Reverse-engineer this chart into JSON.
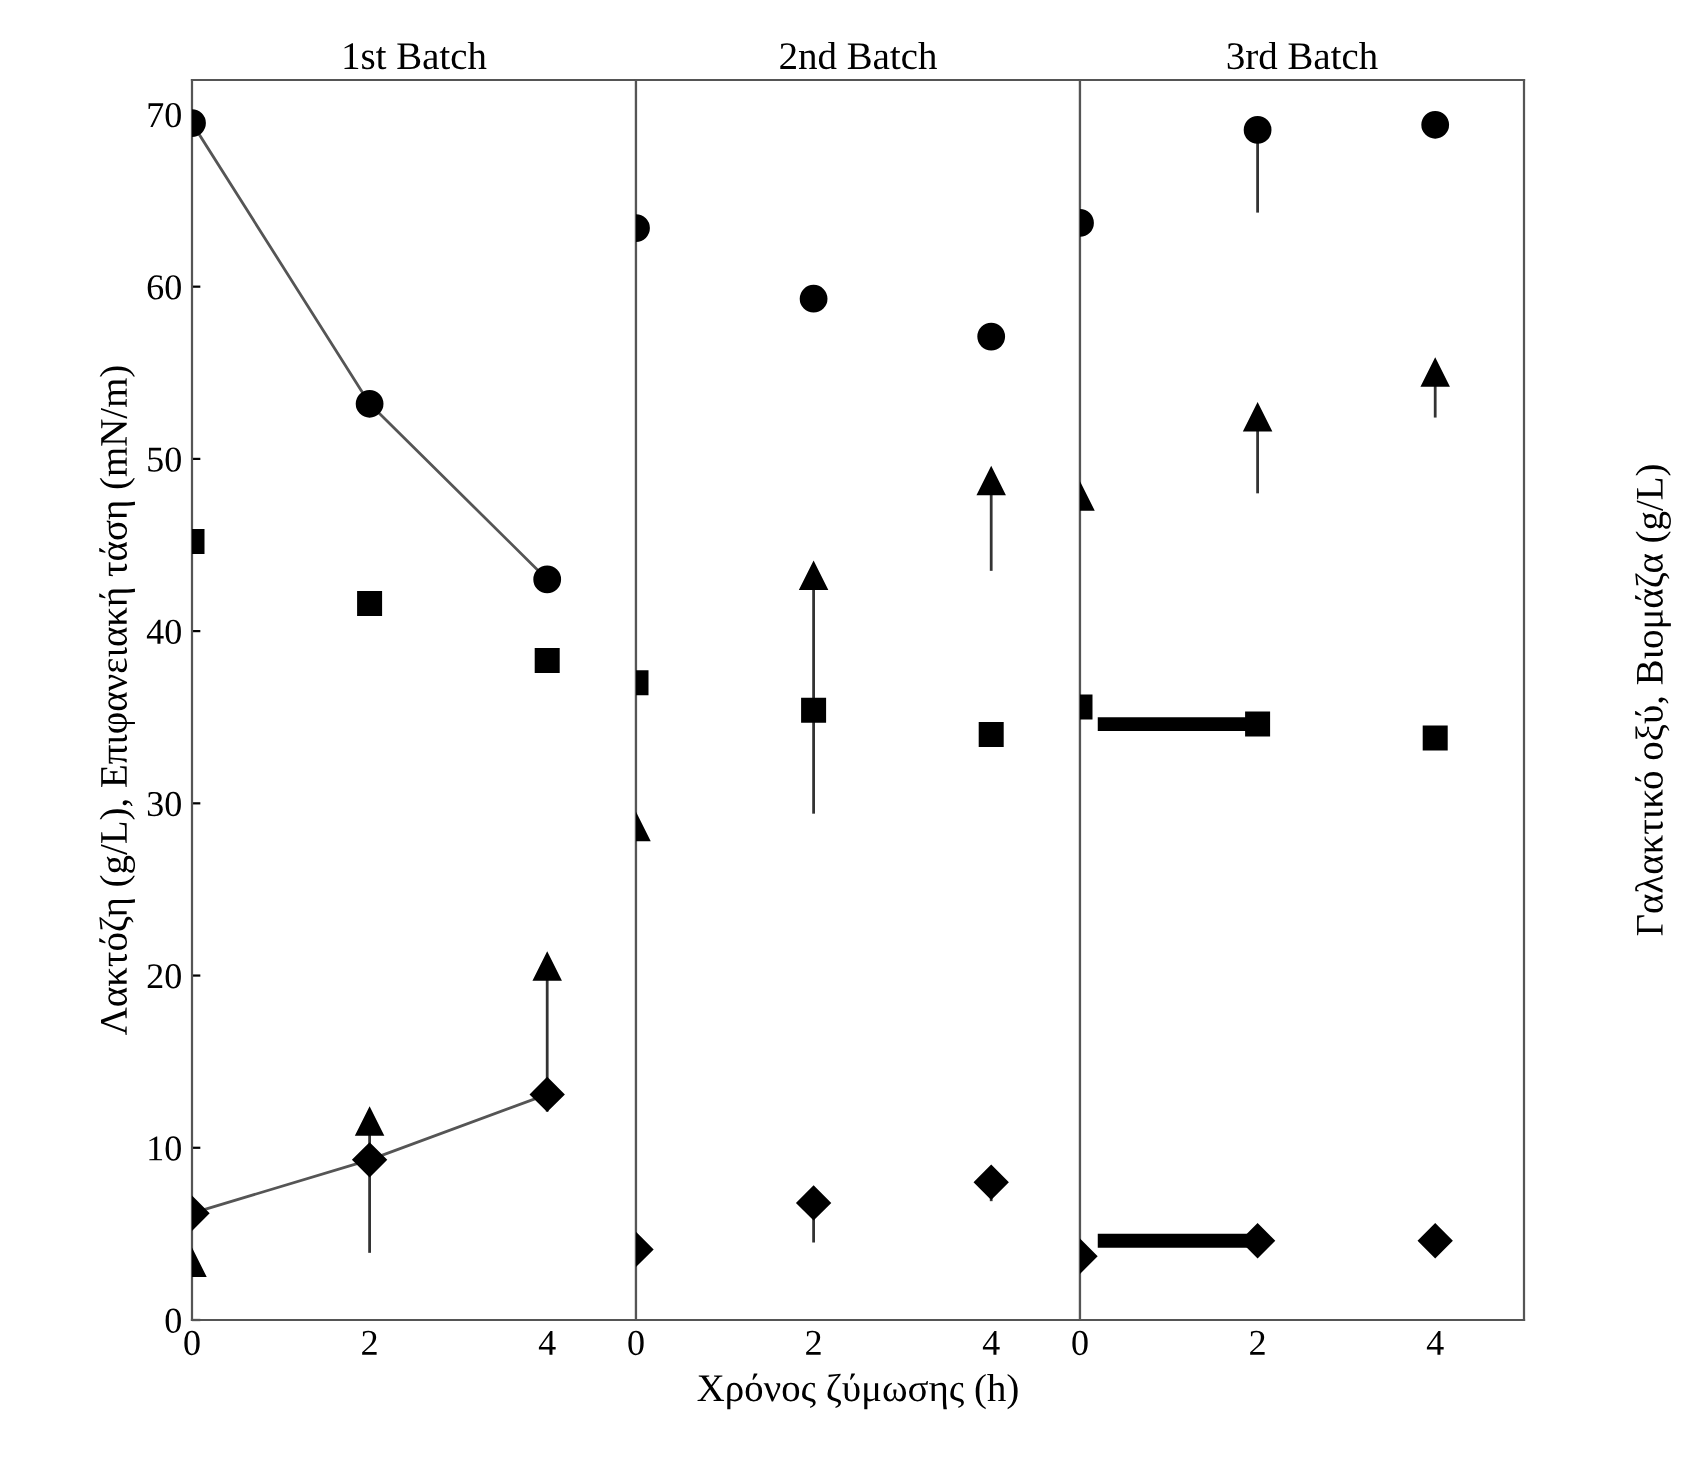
{
  "chart_data": [
    {
      "type": "scatter",
      "title": "1st Batch",
      "ylabel": "Λακτόζη (g/L), Επιφανειακή τάση (mN/m)",
      "x": [
        0,
        2,
        4
      ],
      "xlim": [
        0,
        5
      ],
      "xticks": [
        0,
        2,
        4
      ],
      "ylim": [
        0,
        72
      ],
      "yticks": [
        0,
        10,
        20,
        30,
        40,
        50,
        60,
        70
      ],
      "grid": false,
      "series": [
        {
          "type": "line",
          "marker": "circle",
          "color": "#000000",
          "values": [
            69.5,
            53.2,
            43.0
          ]
        },
        {
          "marker": "square",
          "color": "#000000",
          "values": [
            45.2,
            41.6,
            38.3
          ]
        },
        {
          "marker": "triangle",
          "color": "#000000",
          "values": [
            3.3,
            11.5,
            20.5
          ],
          "errors": [
            null,
            [
              3.9,
              11.5
            ],
            [
              12.1,
              20.5
            ]
          ]
        },
        {
          "type": "line",
          "marker": "diamond",
          "color": "#000000",
          "values": [
            6.2,
            9.3,
            13.1
          ]
        }
      ]
    },
    {
      "type": "scatter",
      "title": "2nd Batch",
      "xlabel": "Χρόνος ζύμωσης (h)",
      "x": [
        0,
        2,
        4
      ],
      "xlim": [
        0,
        5
      ],
      "xticks": [
        0,
        2,
        4
      ],
      "ylim": [
        0,
        72
      ],
      "yticks": [
        0,
        10,
        20,
        30,
        40,
        50,
        60,
        70
      ],
      "tick_labels": "x",
      "grid": false,
      "series": [
        {
          "marker": "circle",
          "color": "#000000",
          "values": [
            63.4,
            59.3,
            57.1
          ]
        },
        {
          "marker": "square",
          "color": "#000000",
          "values": [
            37.0,
            35.4,
            34.0
          ]
        },
        {
          "marker": "triangle",
          "color": "#000000",
          "values": [
            28.6,
            43.2,
            48.7
          ],
          "errors": [
            null,
            [
              29.4,
              43.2
            ],
            [
              43.5,
              48.7
            ]
          ]
        },
        {
          "marker": "diamond",
          "color": "#000000",
          "values": [
            4.1,
            6.8,
            8.0
          ],
          "errors": [
            null,
            [
              4.5,
              6.8
            ],
            [
              6.9,
              8.0
            ]
          ]
        }
      ]
    },
    {
      "type": "scatter",
      "title": "3rd Batch",
      "y2label": "Γαλακτικό οξύ, Βιομάζα (g/L)",
      "x": [
        0,
        2,
        4
      ],
      "xlim": [
        0,
        5
      ],
      "xticks": [
        0,
        2,
        4
      ],
      "ylim": [
        0,
        72
      ],
      "yticks": [
        0,
        10,
        20,
        30,
        40,
        50,
        60,
        70
      ],
      "tick_labels": "x",
      "grid": false,
      "series": [
        {
          "marker": "circle",
          "color": "#000000",
          "values": [
            63.7,
            69.1,
            69.4
          ],
          "errors": [
            null,
            [
              64.3,
              69.1
            ],
            null
          ]
        },
        {
          "marker": "square",
          "color": "#000000",
          "values": [
            35.6,
            34.6,
            33.8
          ],
          "xerrors": [
            null,
            [
              0.2,
              2
            ],
            null
          ]
        },
        {
          "marker": "triangle",
          "color": "#000000",
          "values": [
            47.8,
            52.4,
            55.0
          ],
          "errors": [
            null,
            [
              48.0,
              52.4
            ],
            [
              52.4,
              55.0
            ]
          ]
        },
        {
          "marker": "diamond",
          "color": "#000000",
          "values": [
            3.7,
            4.6,
            4.6
          ],
          "xerrors": [
            null,
            [
              0.2,
              2
            ],
            null
          ]
        }
      ]
    }
  ]
}
